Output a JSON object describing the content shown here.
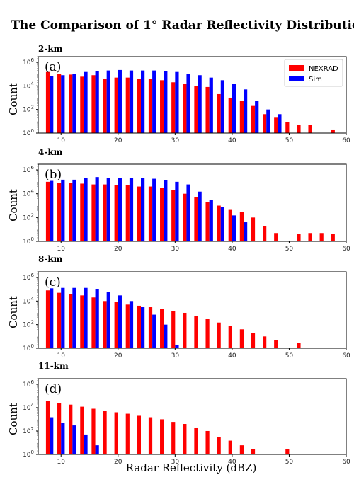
{
  "colors": {
    "NEXRAD": "#ff0000",
    "Sim": "#0000ff"
  },
  "figure": {
    "title": "The Comparison of 1° Radar Reflectivity Distribution",
    "ylabel": "Count",
    "xlabel": "Radar Reflectivity (dBZ)"
  },
  "legend": {
    "placement": "top-right",
    "items": [
      "NEXRAD",
      "Sim"
    ]
  },
  "chart_data": [
    {
      "type": "bar",
      "title": "2-km",
      "panel": "(a)",
      "yscale": "log",
      "xlim": [
        6,
        60
      ],
      "ylim": [
        1,
        3000000
      ],
      "xticks": [
        10,
        20,
        30,
        40,
        50,
        60
      ],
      "yticks": [
        1,
        100,
        10000,
        1000000
      ],
      "ytick_labels": [
        "10^0",
        "10^2",
        "10^4",
        "10^6"
      ],
      "x": [
        8,
        10,
        12,
        14,
        16,
        18,
        20,
        22,
        24,
        26,
        28,
        30,
        32,
        34,
        36,
        38,
        40,
        42,
        44,
        46,
        48,
        50,
        52,
        54,
        58
      ],
      "series": [
        {
          "name": "NEXRAD",
          "values": [
            150000,
            100000,
            90000,
            60000,
            80000,
            40000,
            50000,
            50000,
            40000,
            40000,
            30000,
            20000,
            15000,
            10000,
            8000,
            2000,
            1000,
            500,
            200,
            40,
            20,
            8,
            5,
            5,
            2
          ]
        },
        {
          "name": "Sim",
          "values": [
            70000,
            80000,
            100000,
            150000,
            180000,
            200000,
            220000,
            200000,
            200000,
            200000,
            180000,
            150000,
            100000,
            80000,
            50000,
            30000,
            15000,
            5000,
            500,
            100,
            40,
            null,
            null,
            null,
            null
          ]
        }
      ]
    },
    {
      "type": "bar",
      "title": "4-km",
      "panel": "(b)",
      "yscale": "log",
      "xlim": [
        6,
        60
      ],
      "ylim": [
        1,
        3000000
      ],
      "xticks": [
        10,
        20,
        30,
        40,
        50,
        60
      ],
      "yticks": [
        1,
        100,
        10000,
        1000000
      ],
      "ytick_labels": [
        "10^0",
        "10^2",
        "10^4",
        "10^6"
      ],
      "x": [
        8,
        10,
        12,
        14,
        16,
        18,
        20,
        22,
        24,
        26,
        28,
        30,
        32,
        34,
        36,
        38,
        40,
        42,
        44,
        46,
        48,
        52,
        54,
        56,
        58
      ],
      "series": [
        {
          "name": "NEXRAD",
          "values": [
            100000,
            80000,
            80000,
            70000,
            60000,
            60000,
            50000,
            50000,
            40000,
            40000,
            30000,
            20000,
            10000,
            5000,
            2000,
            1000,
            500,
            300,
            100,
            20,
            5,
            4,
            5,
            5,
            4
          ]
        },
        {
          "name": "Sim",
          "values": [
            120000,
            150000,
            150000,
            200000,
            250000,
            200000,
            200000,
            200000,
            200000,
            180000,
            130000,
            100000,
            60000,
            15000,
            3000,
            800,
            150,
            40,
            null,
            null,
            null,
            null,
            null,
            null,
            null
          ]
        }
      ]
    },
    {
      "type": "bar",
      "title": "8-km",
      "panel": "(c)",
      "yscale": "log",
      "xlim": [
        6,
        60
      ],
      "ylim": [
        1,
        3000000
      ],
      "xticks": [
        10,
        20,
        30,
        40,
        50,
        60
      ],
      "yticks": [
        1,
        100,
        10000,
        1000000
      ],
      "ytick_labels": [
        "10^0",
        "10^2",
        "10^4",
        "10^6"
      ],
      "x": [
        8,
        10,
        12,
        14,
        16,
        18,
        20,
        22,
        24,
        26,
        28,
        30,
        32,
        34,
        36,
        38,
        40,
        42,
        44,
        46,
        48,
        52
      ],
      "series": [
        {
          "name": "NEXRAD",
          "values": [
            80000,
            50000,
            40000,
            30000,
            20000,
            10000,
            8000,
            5000,
            4000,
            3000,
            2000,
            1500,
            1000,
            500,
            300,
            150,
            80,
            40,
            20,
            10,
            5,
            3
          ]
        },
        {
          "name": "Sim",
          "values": [
            120000,
            130000,
            130000,
            130000,
            100000,
            60000,
            30000,
            10000,
            3000,
            700,
            100,
            2,
            null,
            null,
            null,
            null,
            null,
            null,
            null,
            null,
            null,
            null
          ]
        }
      ]
    },
    {
      "type": "bar",
      "title": "11-km",
      "panel": "(d)",
      "yscale": "log",
      "xlim": [
        6,
        60
      ],
      "ylim": [
        1,
        3000000
      ],
      "xticks": [
        10,
        20,
        30,
        40,
        50,
        60
      ],
      "yticks": [
        1,
        100,
        10000,
        1000000
      ],
      "ytick_labels": [
        "10^0",
        "10^2",
        "10^4",
        "10^6"
      ],
      "x": [
        8,
        10,
        12,
        14,
        16,
        18,
        20,
        22,
        24,
        26,
        28,
        30,
        32,
        34,
        36,
        38,
        40,
        42,
        44,
        50
      ],
      "series": [
        {
          "name": "NEXRAD",
          "values": [
            35000,
            25000,
            18000,
            12000,
            8000,
            5000,
            4000,
            3000,
            2000,
            1500,
            1000,
            600,
            400,
            200,
            100,
            30,
            15,
            6,
            3,
            3
          ]
        },
        {
          "name": "Sim",
          "values": [
            1500,
            500,
            300,
            50,
            6,
            null,
            null,
            null,
            null,
            null,
            null,
            null,
            null,
            null,
            null,
            null,
            null,
            null,
            null,
            null
          ]
        }
      ]
    }
  ]
}
